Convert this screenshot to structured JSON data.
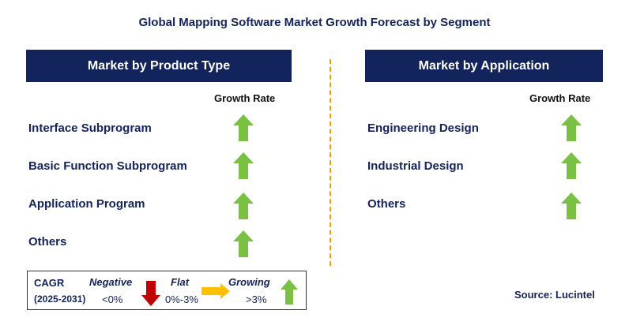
{
  "title": "Global Mapping Software Market Growth Forecast by Segment",
  "left_panel": {
    "header": "Market by Product Type",
    "column_header": "Growth Rate",
    "rows": [
      {
        "label": "Interface Subprogram",
        "trend": "growing"
      },
      {
        "label": "Basic Function Subprogram",
        "trend": "growing"
      },
      {
        "label": "Application Program",
        "trend": "growing"
      },
      {
        "label": "Others",
        "trend": "growing"
      }
    ]
  },
  "right_panel": {
    "header": "Market by Application",
    "column_header": "Growth Rate",
    "rows": [
      {
        "label": "Engineering Design",
        "trend": "growing"
      },
      {
        "label": "Industrial Design",
        "trend": "growing"
      },
      {
        "label": "Others",
        "trend": "growing"
      }
    ]
  },
  "legend": {
    "cagr_label": "CAGR",
    "period": "(2025-2031)",
    "negative_label": "Negative",
    "negative_range": "<0%",
    "flat_label": "Flat",
    "flat_range": "0%-3%",
    "growing_label": "Growing",
    "growing_range": ">3%"
  },
  "source": "Source: Lucintel",
  "colors": {
    "navy": "#13235b",
    "growing_arrow": "#7ac143",
    "negative_arrow": "#c00000",
    "flat_arrow": "#ffc000",
    "divider": "#f0a000"
  }
}
